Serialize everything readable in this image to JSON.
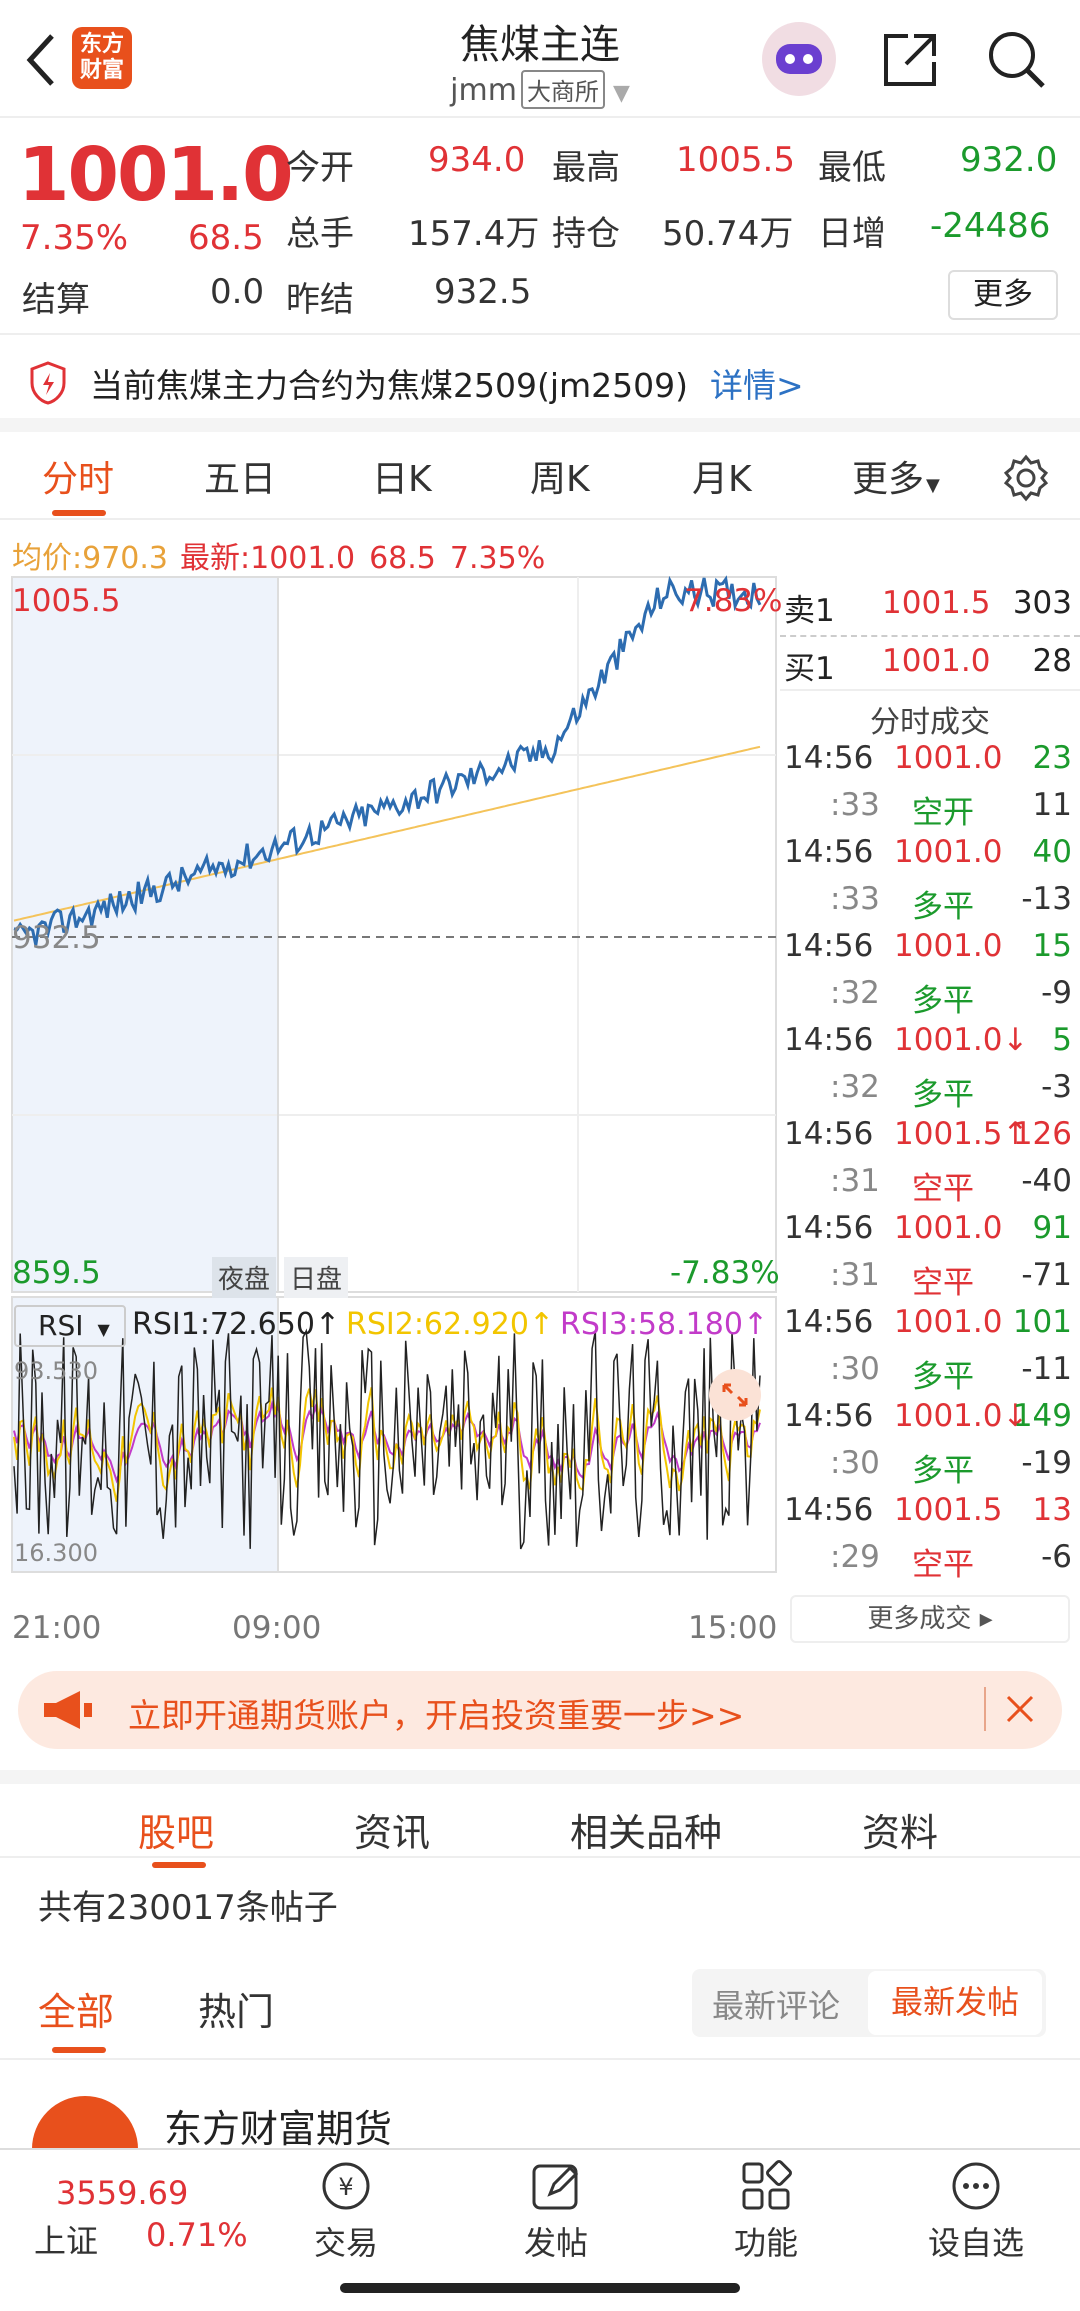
{
  "header": {
    "title": "焦煤主连",
    "code": "jmm",
    "exchange": "大商所",
    "logo_text": [
      "东方",
      "财富"
    ]
  },
  "quote": {
    "price": "1001.0",
    "change_pct": "7.35%",
    "change": "68.5",
    "settle_label": "结算",
    "settle": "0.0",
    "open_label": "今开",
    "open": "934.0",
    "high_label": "最高",
    "high": "1005.5",
    "low_label": "最低",
    "low": "932.0",
    "volume_label": "总手",
    "volume": "157.4万",
    "oi_label": "持仓",
    "oi": "50.74万",
    "daily_inc_label": "日增",
    "daily_inc": "-24486",
    "prev_settle_label": "昨结",
    "prev_settle": "932.5",
    "more": "更多"
  },
  "notice": {
    "text": "当前焦煤主力合约为焦煤2509(jm2509)",
    "link": "详情>"
  },
  "tabs": [
    "分时",
    "五日",
    "日K",
    "周K",
    "月K",
    "更多"
  ],
  "avg": {
    "avg_label": "均价:",
    "avg": "970.3",
    "latest_label": "最新:",
    "latest": "1001.0",
    "change": "68.5",
    "pct": "7.35%"
  },
  "chart": {
    "top": "1005.5",
    "top_pct": "7.83%",
    "base": "932.5",
    "bottom": "859.5",
    "bottom_pct": "-7.83%",
    "night": "夜盘",
    "day": "日盘",
    "x_labels": [
      "21:00",
      "09:00",
      "15:00"
    ],
    "rsi_select": "RSI",
    "rsi1": "RSI1:72.650",
    "rsi2": "RSI2:62.920",
    "rsi3": "RSI3:58.180",
    "rsi_max": "93.530",
    "rsi_min": "16.300"
  },
  "chart_data": {
    "type": "line",
    "series": [
      {
        "name": "最新",
        "note": "price"
      },
      {
        "name": "均价"
      }
    ],
    "ylim": [
      859.5,
      1005.5
    ],
    "x": [
      "21:00",
      "09:00",
      "15:00"
    ]
  },
  "book": {
    "sell_label": "卖1",
    "sell_price": "1001.5",
    "sell_vol": "303",
    "buy_label": "买1",
    "buy_price": "1001.0",
    "buy_vol": "28",
    "title": "分时成交",
    "trades": [
      {
        "t": "14:56",
        "p": "1001.0",
        "v": "23",
        "s": ":33",
        "k": "空开",
        "n": "11"
      },
      {
        "t": "14:56",
        "p": "1001.0",
        "v": "40",
        "s": ":33",
        "k": "多平",
        "n": "-13"
      },
      {
        "t": "14:56",
        "p": "1001.0",
        "v": "15",
        "s": ":32",
        "k": "多平",
        "n": "-9"
      },
      {
        "t": "14:56",
        "p": "1001.0↓",
        "v": "5",
        "s": ":32",
        "k": "多平",
        "n": "-3"
      },
      {
        "t": "14:56",
        "p": "1001.5↑",
        "v": "126",
        "s": ":31",
        "k": "空平",
        "n": "-40"
      },
      {
        "t": "14:56",
        "p": "1001.0",
        "v": "91",
        "s": ":31",
        "k": "空平",
        "n": "-71"
      },
      {
        "t": "14:56",
        "p": "1001.0",
        "v": "101",
        "s": ":30",
        "k": "多平",
        "n": "-11"
      },
      {
        "t": "14:56",
        "p": "1001.0↓",
        "v": "149",
        "s": ":30",
        "k": "多平",
        "n": "-19"
      },
      {
        "t": "14:56",
        "p": "1001.5",
        "v": "13",
        "s": ":29",
        "k": "空平",
        "n": "-6"
      }
    ],
    "more": "更多成交"
  },
  "promo": {
    "text": "立即开通期货账户，开启投资重要一步>>"
  },
  "btabs": [
    "股吧",
    "资讯",
    "相关品种",
    "资料"
  ],
  "posts": {
    "count": "共有230017条帖子",
    "all": "全部",
    "hot": "热门",
    "latest_comment": "最新评论",
    "latest_post": "最新发帖",
    "author": "东方财富期货"
  },
  "bottom": {
    "index_value": "3559.69",
    "index_name": "上证",
    "index_pct": "0.71%",
    "trade": "交易",
    "post": "发帖",
    "func": "功能",
    "watch": "设自选"
  },
  "colors": {
    "up": "#e03236",
    "down": "#1b9a2c",
    "accent": "#e8501c",
    "price_line": "#2d6cb0",
    "avg_line": "#f4c35a",
    "rsi1": "#222222",
    "rsi2": "#f2c500",
    "rsi3": "#c23bc9"
  }
}
